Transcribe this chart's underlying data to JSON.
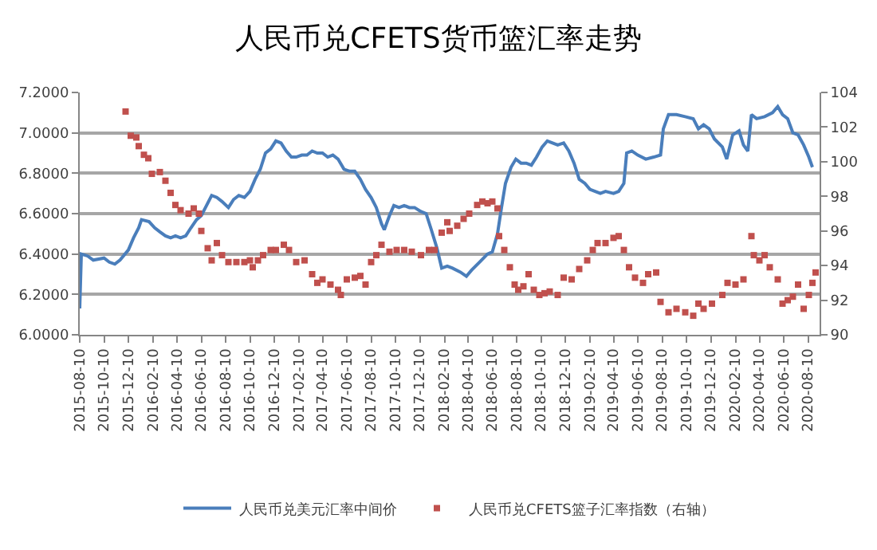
{
  "chart_data": {
    "type": "line",
    "title": "人民币兑CFETS货币篮汇率走势",
    "xlim": [
      "2015-08-10",
      "2020-09-08"
    ],
    "xticks": [
      {
        "value": "2015-08-10",
        "label": "2015-08-10"
      },
      {
        "value": "2015-10-10",
        "label": "2015-10-10"
      },
      {
        "value": "2015-12-10",
        "label": "2015-12-10"
      },
      {
        "value": "2016-02-10",
        "label": "2016-02-10"
      },
      {
        "value": "2016-04-10",
        "label": "2016-04-10"
      },
      {
        "value": "2016-06-10",
        "label": "2016-06-10"
      },
      {
        "value": "2016-08-10",
        "label": "2016-08-10"
      },
      {
        "value": "2016-10-10",
        "label": "2016-10-10"
      },
      {
        "value": "2016-12-10",
        "label": "2016-12-10"
      },
      {
        "value": "2017-02-10",
        "label": "2017-02-10"
      },
      {
        "value": "2017-04-10",
        "label": "2017-04-10"
      },
      {
        "value": "2017-06-10",
        "label": "2017-06-10"
      },
      {
        "value": "2017-08-10",
        "label": "2017-08-10"
      },
      {
        "value": "2017-10-10",
        "label": "2017-10-10"
      },
      {
        "value": "2017-12-10",
        "label": "2017-12-10"
      },
      {
        "value": "2018-02-10",
        "label": "2018-02-10"
      },
      {
        "value": "2018-04-10",
        "label": "2018-04-10"
      },
      {
        "value": "2018-06-10",
        "label": "2018-06-10"
      },
      {
        "value": "2018-08-10",
        "label": "2018-08-10"
      },
      {
        "value": "2018-10-10",
        "label": "2018-10-10"
      },
      {
        "value": "2018-12-10",
        "label": "2018-12-10"
      },
      {
        "value": "2019-02-10",
        "label": "2019-02-10"
      },
      {
        "value": "2019-04-10",
        "label": "2019-04-10"
      },
      {
        "value": "2019-06-10",
        "label": "2019-06-10"
      },
      {
        "value": "2019-08-10",
        "label": "2019-08-10"
      },
      {
        "value": "2019-10-10",
        "label": "2019-10-10"
      },
      {
        "value": "2019-12-10",
        "label": "2019-12-10"
      },
      {
        "value": "2020-02-10",
        "label": "2020-02-10"
      },
      {
        "value": "2020-04-10",
        "label": "2020-04-10"
      },
      {
        "value": "2020-06-10",
        "label": "2020-06-10"
      },
      {
        "value": "2020-08-10",
        "label": "2020-08-10"
      }
    ],
    "ylim": [
      6.0,
      7.2
    ],
    "yticks": [
      {
        "value": 6.0,
        "label": "6.0000"
      },
      {
        "value": 6.2,
        "label": "6.2000"
      },
      {
        "value": 6.4,
        "label": "6.4000"
      },
      {
        "value": 6.6,
        "label": "6.6000"
      },
      {
        "value": 6.8,
        "label": "6.8000"
      },
      {
        "value": 7.0,
        "label": "7.0000"
      },
      {
        "value": 7.2,
        "label": "7.2000"
      }
    ],
    "y2lim": [
      90,
      104
    ],
    "y2ticks": [
      90,
      92,
      94,
      96,
      98,
      100,
      102,
      104
    ],
    "grid": "y",
    "legend": "bottom",
    "series": [
      {
        "name": "人民币兑美元汇率中间价",
        "color": "#4a7ebb",
        "marker": "none",
        "line_style": "solid",
        "x": [
          "2015-08-10",
          "2015-08-14",
          "2015-08-30",
          "2015-09-13",
          "2015-10-10",
          "2015-10-23",
          "2015-11-06",
          "2015-11-19",
          "2015-12-10",
          "2015-12-23",
          "2016-01-05",
          "2016-01-12",
          "2016-01-31",
          "2016-02-14",
          "2016-02-27",
          "2016-03-12",
          "2016-03-25",
          "2016-04-06",
          "2016-04-19",
          "2016-05-02",
          "2016-05-15",
          "2016-05-29",
          "2016-06-10",
          "2016-06-23",
          "2016-07-06",
          "2016-07-19",
          "2016-08-01",
          "2016-08-17",
          "2016-08-30",
          "2016-09-12",
          "2016-09-26",
          "2016-10-10",
          "2016-10-23",
          "2016-11-05",
          "2016-11-18",
          "2016-12-01",
          "2016-12-14",
          "2016-12-27",
          "2017-01-09",
          "2017-01-22",
          "2017-02-03",
          "2017-02-17",
          "2017-03-02",
          "2017-03-15",
          "2017-03-28",
          "2017-04-10",
          "2017-04-23",
          "2017-05-06",
          "2017-05-19",
          "2017-06-03",
          "2017-06-17",
          "2017-06-30",
          "2017-07-14",
          "2017-07-27",
          "2017-08-10",
          "2017-08-23",
          "2017-09-05",
          "2017-09-12",
          "2017-09-25",
          "2017-10-06",
          "2017-10-19",
          "2017-11-01",
          "2017-11-14",
          "2017-11-27",
          "2017-12-13",
          "2017-12-26",
          "2018-01-08",
          "2018-01-22",
          "2018-02-03",
          "2018-02-17",
          "2018-03-02",
          "2018-03-22",
          "2018-04-06",
          "2018-04-19",
          "2018-05-09",
          "2018-05-29",
          "2018-06-10",
          "2018-06-23",
          "2018-07-03",
          "2018-07-13",
          "2018-07-27",
          "2018-08-08",
          "2018-08-21",
          "2018-09-03",
          "2018-09-16",
          "2018-09-29",
          "2018-10-13",
          "2018-10-26",
          "2018-11-08",
          "2018-11-21",
          "2018-12-06",
          "2018-12-19",
          "2019-01-01",
          "2019-01-14",
          "2019-01-28",
          "2019-02-10",
          "2019-02-23",
          "2019-03-08",
          "2019-03-21",
          "2019-04-10",
          "2019-04-23",
          "2019-05-06",
          "2019-05-13",
          "2019-05-26",
          "2019-06-10",
          "2019-06-30",
          "2019-07-20",
          "2019-08-06",
          "2019-08-13",
          "2019-08-26",
          "2019-09-15",
          "2019-10-07",
          "2019-10-27",
          "2019-11-09",
          "2019-11-22",
          "2019-12-06",
          "2019-12-19",
          "2020-01-08",
          "2020-01-19",
          "2020-02-03",
          "2020-02-19",
          "2020-03-01",
          "2020-03-12",
          "2020-03-21",
          "2020-04-03",
          "2020-04-23",
          "2020-05-13",
          "2020-05-26",
          "2020-06-07",
          "2020-06-20",
          "2020-07-03",
          "2020-07-16",
          "2020-07-30",
          "2020-08-12",
          "2020-08-21"
        ],
        "values": [
          6.13,
          6.4,
          6.39,
          6.37,
          6.38,
          6.36,
          6.35,
          6.37,
          6.42,
          6.48,
          6.53,
          6.57,
          6.56,
          6.53,
          6.51,
          6.49,
          6.48,
          6.49,
          6.48,
          6.49,
          6.53,
          6.57,
          6.59,
          6.64,
          6.69,
          6.68,
          6.66,
          6.63,
          6.67,
          6.69,
          6.68,
          6.71,
          6.77,
          6.82,
          6.9,
          6.92,
          6.96,
          6.95,
          6.91,
          6.88,
          6.88,
          6.89,
          6.89,
          6.91,
          6.9,
          6.9,
          6.88,
          6.89,
          6.87,
          6.82,
          6.81,
          6.81,
          6.77,
          6.72,
          6.68,
          6.63,
          6.55,
          6.52,
          6.59,
          6.64,
          6.63,
          6.64,
          6.63,
          6.63,
          6.61,
          6.6,
          6.52,
          6.43,
          6.33,
          6.34,
          6.33,
          6.31,
          6.29,
          6.32,
          6.36,
          6.4,
          6.41,
          6.5,
          6.63,
          6.75,
          6.83,
          6.87,
          6.85,
          6.85,
          6.84,
          6.88,
          6.93,
          6.96,
          6.95,
          6.94,
          6.95,
          6.91,
          6.85,
          6.77,
          6.75,
          6.72,
          6.71,
          6.7,
          6.71,
          6.7,
          6.71,
          6.75,
          6.9,
          6.91,
          6.89,
          6.87,
          6.88,
          6.89,
          7.02,
          7.09,
          7.09,
          7.08,
          7.07,
          7.02,
          7.04,
          7.02,
          6.97,
          6.93,
          6.87,
          6.99,
          7.01,
          6.94,
          6.91,
          7.09,
          7.07,
          7.08,
          7.1,
          7.13,
          7.09,
          7.07,
          7.0,
          6.99,
          6.94,
          6.88,
          6.83
        ]
      },
      {
        "name": "人民币兑CFETS篮子汇率指数（右轴）",
        "type": "scatter",
        "axis": "y2",
        "color": "#c0504d",
        "marker": "square",
        "x": [
          "2015-12-03",
          "2015-12-16",
          "2015-12-30",
          "2016-01-05",
          "2016-01-18",
          "2016-01-29",
          "2016-02-07",
          "2016-02-27",
          "2016-03-12",
          "2016-03-25",
          "2016-04-06",
          "2016-04-19",
          "2016-05-09",
          "2016-05-22",
          "2016-06-04",
          "2016-06-10",
          "2016-06-26",
          "2016-07-06",
          "2016-07-19",
          "2016-08-01",
          "2016-08-17",
          "2016-09-06",
          "2016-09-26",
          "2016-10-10",
          "2016-10-17",
          "2016-10-30",
          "2016-11-12",
          "2016-12-01",
          "2016-12-14",
          "2017-01-03",
          "2017-01-16",
          "2017-02-03",
          "2017-02-24",
          "2017-03-15",
          "2017-03-28",
          "2017-04-10",
          "2017-04-30",
          "2017-05-19",
          "2017-05-26",
          "2017-06-10",
          "2017-06-30",
          "2017-07-14",
          "2017-07-27",
          "2017-08-10",
          "2017-08-23",
          "2017-09-05",
          "2017-09-25",
          "2017-10-13",
          "2017-11-01",
          "2017-11-20",
          "2017-12-13",
          "2018-01-02",
          "2018-01-16",
          "2018-02-03",
          "2018-02-17",
          "2018-02-23",
          "2018-03-14",
          "2018-03-30",
          "2018-04-13",
          "2018-05-03",
          "2018-05-16",
          "2018-05-29",
          "2018-06-10",
          "2018-06-23",
          "2018-06-27",
          "2018-07-10",
          "2018-07-24",
          "2018-08-05",
          "2018-08-14",
          "2018-08-27",
          "2018-09-09",
          "2018-09-22",
          "2018-10-06",
          "2018-10-19",
          "2018-11-01",
          "2018-11-21",
          "2018-12-06",
          "2018-12-26",
          "2019-01-14",
          "2019-02-03",
          "2019-02-17",
          "2019-03-01",
          "2019-03-21",
          "2019-04-10",
          "2019-04-23",
          "2019-05-06",
          "2019-05-19",
          "2019-06-03",
          "2019-06-23",
          "2019-07-06",
          "2019-07-26",
          "2019-08-06",
          "2019-08-26",
          "2019-09-15",
          "2019-10-07",
          "2019-10-27",
          "2019-11-09",
          "2019-11-22",
          "2019-12-13",
          "2020-01-08",
          "2020-01-21",
          "2020-02-10",
          "2020-03-01",
          "2020-03-21",
          "2020-03-27",
          "2020-04-10",
          "2020-04-23",
          "2020-05-06",
          "2020-05-26",
          "2020-06-07",
          "2020-06-20",
          "2020-07-03",
          "2020-07-16",
          "2020-07-30",
          "2020-08-12",
          "2020-08-21",
          "2020-08-29"
        ],
        "values": [
          102.9,
          101.5,
          101.4,
          100.9,
          100.4,
          100.2,
          99.3,
          99.4,
          98.9,
          98.2,
          97.5,
          97.2,
          97.0,
          97.3,
          97.0,
          96.0,
          95.0,
          94.3,
          95.3,
          94.6,
          94.2,
          94.2,
          94.2,
          94.3,
          93.9,
          94.3,
          94.6,
          94.9,
          94.9,
          95.2,
          94.9,
          94.2,
          94.3,
          93.5,
          93.0,
          93.2,
          92.9,
          92.6,
          92.3,
          93.2,
          93.3,
          93.4,
          92.9,
          94.2,
          94.6,
          95.2,
          94.8,
          94.9,
          94.9,
          94.8,
          94.6,
          94.9,
          94.9,
          95.9,
          96.5,
          96.0,
          96.3,
          96.7,
          97.0,
          97.5,
          97.7,
          97.6,
          97.7,
          97.3,
          95.7,
          94.9,
          93.9,
          92.9,
          92.6,
          92.8,
          93.5,
          92.6,
          92.3,
          92.4,
          92.5,
          92.3,
          93.3,
          93.2,
          93.8,
          94.3,
          94.9,
          95.3,
          95.3,
          95.6,
          95.7,
          94.9,
          93.9,
          93.3,
          93.0,
          93.5,
          93.6,
          91.9,
          91.3,
          91.5,
          91.3,
          91.1,
          91.8,
          91.5,
          91.8,
          92.3,
          93.0,
          92.9,
          93.2,
          95.7,
          94.6,
          94.3,
          94.6,
          93.9,
          93.2,
          91.8,
          92.0,
          92.2,
          92.9,
          91.5,
          92.3,
          93.0,
          93.6
        ]
      }
    ]
  }
}
